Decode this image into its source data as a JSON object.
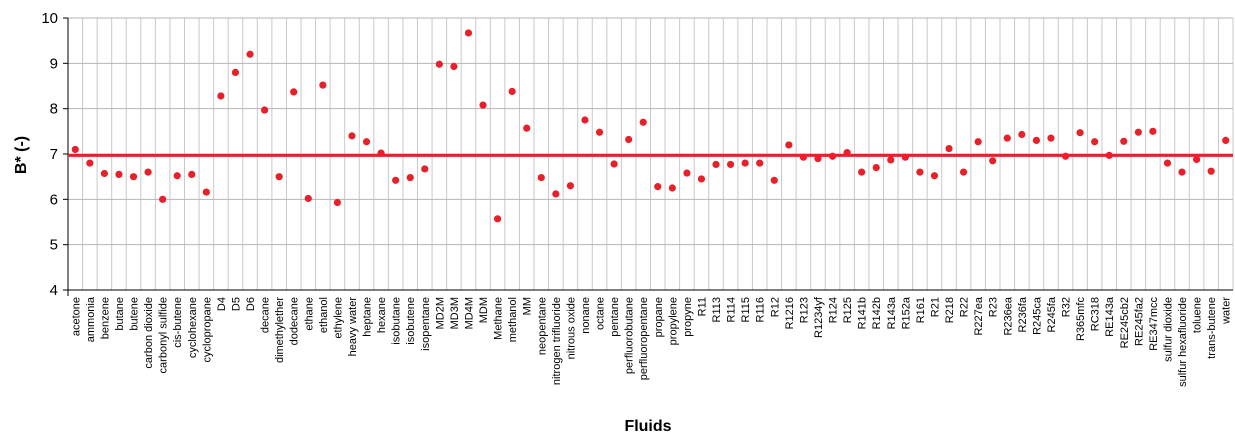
{
  "chart_data": {
    "type": "scatter",
    "title": "",
    "xlabel": "Fluids",
    "ylabel": "B* (-)",
    "ylim": [
      4,
      10
    ],
    "yticks": [
      4,
      5,
      6,
      7,
      8,
      9,
      10
    ],
    "reference_line": 6.97,
    "grid": true,
    "marker_color": "#e8202a",
    "line_color": "#e8202a",
    "categories": [
      "acetone",
      "ammonia",
      "benzene",
      "butane",
      "butene",
      "carbon dioxide",
      "carbonyl sulfide",
      "cis-butene",
      "cyclohexane",
      "cyclopropane",
      "D4",
      "D5",
      "D6",
      "decane",
      "dimethylether",
      "dodecane",
      "ethane",
      "ethanol",
      "ethylene",
      "heavy water",
      "heptane",
      "hexane",
      "isobutane",
      "isobutene",
      "isopentane",
      "MD2M",
      "MD3M",
      "MD4M",
      "MDM",
      "Methane",
      "methanol",
      "MM",
      "neopentane",
      "nitrogen trifluoride",
      "nitrous oxide",
      "nonane",
      "octane",
      "pentane",
      "perfluorobutane",
      "perfluoropentane",
      "propane",
      "propylene",
      "propyne",
      "R11",
      "R113",
      "R114",
      "R115",
      "R116",
      "R12",
      "R1216",
      "R123",
      "R1234yf",
      "R124",
      "R125",
      "R141b",
      "R142b",
      "R143a",
      "R152a",
      "R161",
      "R21",
      "R218",
      "R22",
      "R227ea",
      "R23",
      "R236ea",
      "R236fa",
      "R245ca",
      "R245fa",
      "R32",
      "R365mfc",
      "RC318",
      "RE143a",
      "RE245cb2",
      "RE245fa2",
      "RE347mcc",
      "sulfur dioxide",
      "sulfur hexafluoride",
      "toluene",
      "trans-butene",
      "water"
    ],
    "values": [
      7.1,
      6.8,
      6.57,
      6.55,
      6.5,
      6.6,
      6.0,
      6.52,
      6.55,
      6.16,
      8.28,
      8.8,
      9.2,
      7.97,
      6.5,
      8.37,
      6.02,
      8.52,
      5.93,
      7.4,
      7.27,
      7.02,
      6.42,
      6.48,
      6.67,
      8.98,
      8.93,
      9.67,
      8.08,
      5.57,
      8.38,
      7.57,
      6.48,
      6.12,
      6.3,
      7.75,
      7.48,
      6.78,
      7.32,
      7.7,
      6.28,
      6.25,
      6.58,
      6.45,
      6.77,
      6.77,
      6.8,
      6.8,
      6.42,
      7.2,
      6.93,
      6.9,
      6.95,
      7.03,
      6.6,
      6.7,
      6.87,
      6.93,
      6.6,
      6.52,
      7.12,
      6.6,
      7.27,
      6.85,
      7.35,
      7.43,
      7.3,
      7.35,
      6.95,
      7.47,
      7.27,
      6.97,
      7.28,
      7.48,
      7.5,
      6.8,
      6.6,
      6.88,
      6.62,
      7.3
    ]
  }
}
